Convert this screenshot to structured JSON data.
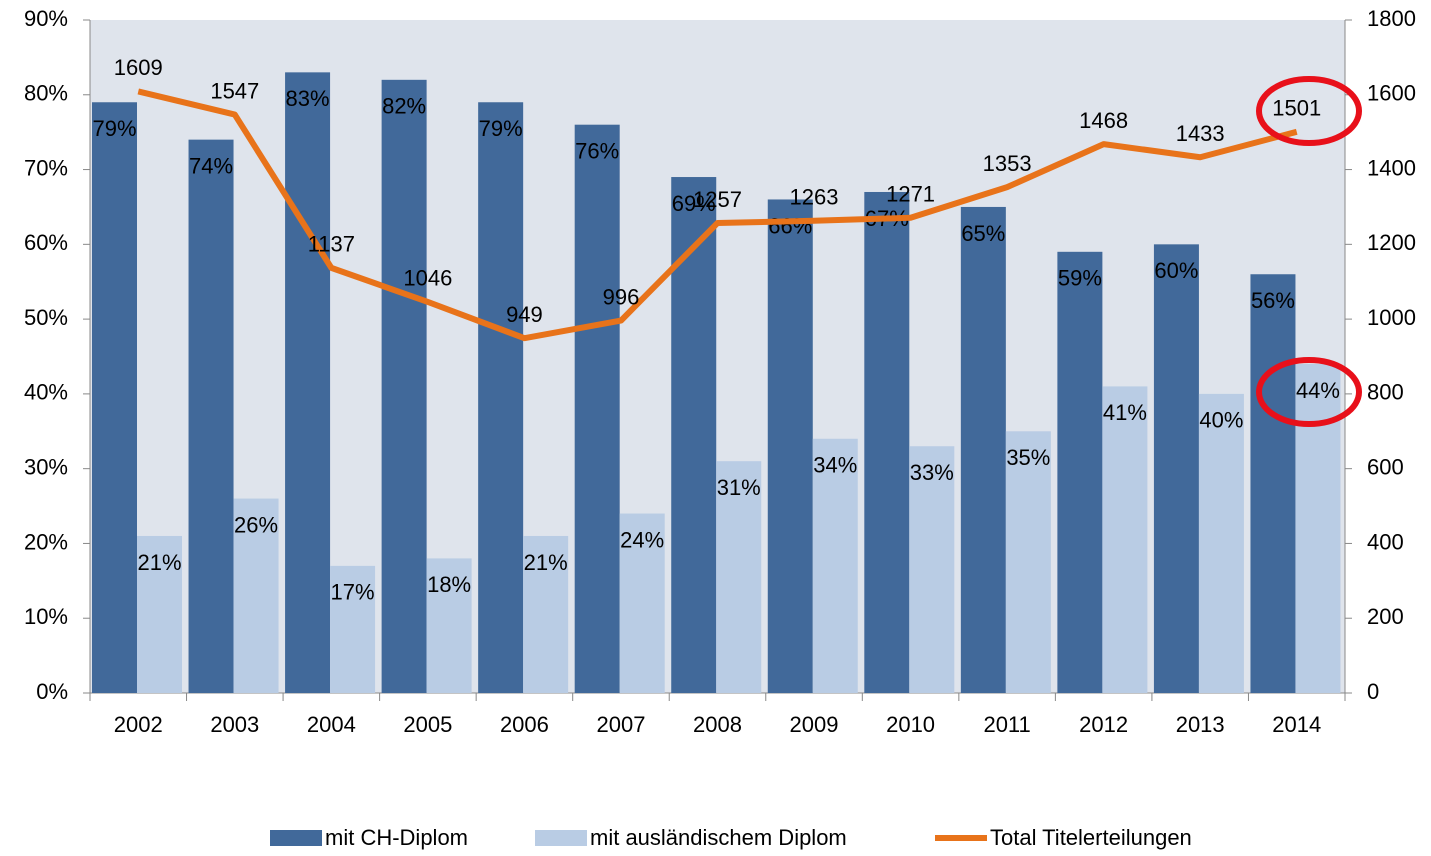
{
  "chart_data": {
    "type": "bar_line",
    "categories": [
      "2002",
      "2003",
      "2004",
      "2005",
      "2006",
      "2007",
      "2008",
      "2009",
      "2010",
      "2011",
      "2012",
      "2013",
      "2014"
    ],
    "series": [
      {
        "name": "mit CH-Diplom",
        "color": "#41699a",
        "type": "bar",
        "values": [
          79,
          74,
          83,
          82,
          79,
          76,
          69,
          66,
          67,
          65,
          59,
          60,
          56
        ],
        "value_labels": [
          "79%",
          "74%",
          "83%",
          "82%",
          "79%",
          "76%",
          "69%",
          "66%",
          "67%",
          "65%",
          "59%",
          "60%",
          "56%"
        ]
      },
      {
        "name": "mit ausländischem Diplom",
        "color": "#b9cce4",
        "type": "bar",
        "values": [
          21,
          26,
          17,
          18,
          21,
          24,
          31,
          34,
          33,
          35,
          41,
          40,
          44
        ],
        "value_labels": [
          "21%",
          "26%",
          "17%",
          "18%",
          "21%",
          "24%",
          "31%",
          "34%",
          "33%",
          "35%",
          "41%",
          "40%",
          "44%"
        ]
      },
      {
        "name": "Total Titelerteilungen",
        "color": "#e8731a",
        "type": "line",
        "axis": "y2",
        "values": [
          1609,
          1547,
          1137,
          1046,
          949,
          996,
          1257,
          1263,
          1271,
          1353,
          1468,
          1433,
          1501
        ]
      }
    ],
    "ylim": [
      0,
      90
    ],
    "yticks": [
      {
        "value": 0,
        "label": "0%"
      },
      {
        "value": 10,
        "label": "10%"
      },
      {
        "value": 20,
        "label": "20%"
      },
      {
        "value": 30,
        "label": "30%"
      },
      {
        "value": 40,
        "label": "40%"
      },
      {
        "value": 50,
        "label": "50%"
      },
      {
        "value": 60,
        "label": "60%"
      },
      {
        "value": 70,
        "label": "70%"
      },
      {
        "value": 80,
        "label": "80%"
      },
      {
        "value": 90,
        "label": "90%"
      }
    ],
    "y2lim": [
      0,
      1800
    ],
    "y2ticks": [
      0,
      200,
      400,
      600,
      800,
      1000,
      1200,
      1400,
      1600,
      1800
    ],
    "legend": "bottom"
  }
}
